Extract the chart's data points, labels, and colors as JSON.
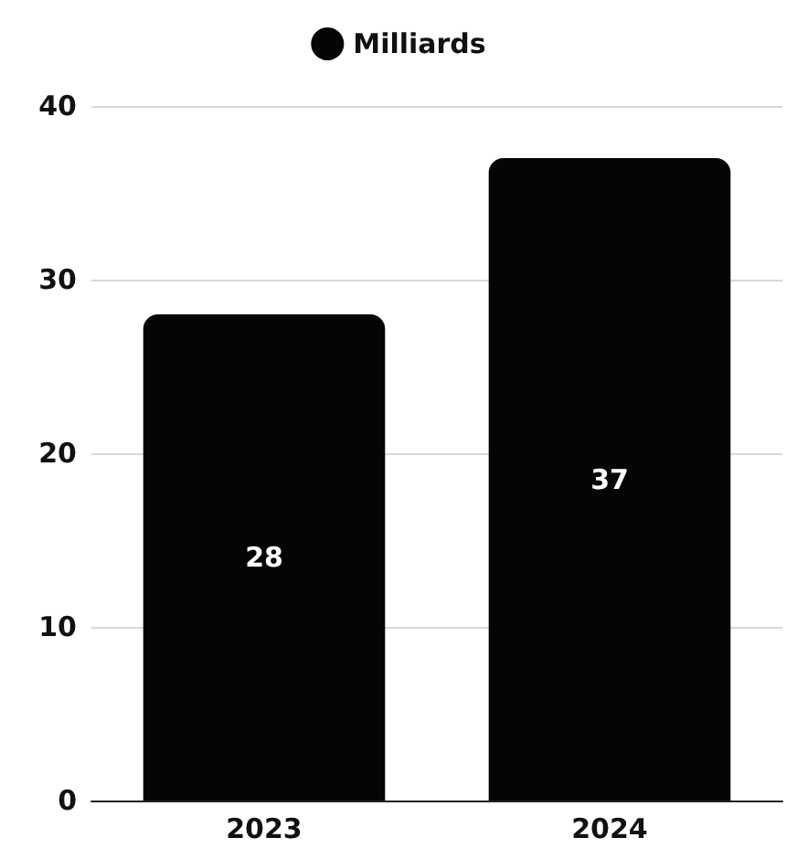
{
  "chart_data": {
    "type": "bar",
    "categories": [
      "2023",
      "2024"
    ],
    "series": [
      {
        "name": "Milliards",
        "color": "#050505",
        "values": [
          28,
          37
        ]
      }
    ],
    "ylim": [
      0,
      40
    ],
    "yticks": [
      0,
      10,
      20,
      30,
      40
    ],
    "grid": "y",
    "legend": "top",
    "data_labels": true
  }
}
